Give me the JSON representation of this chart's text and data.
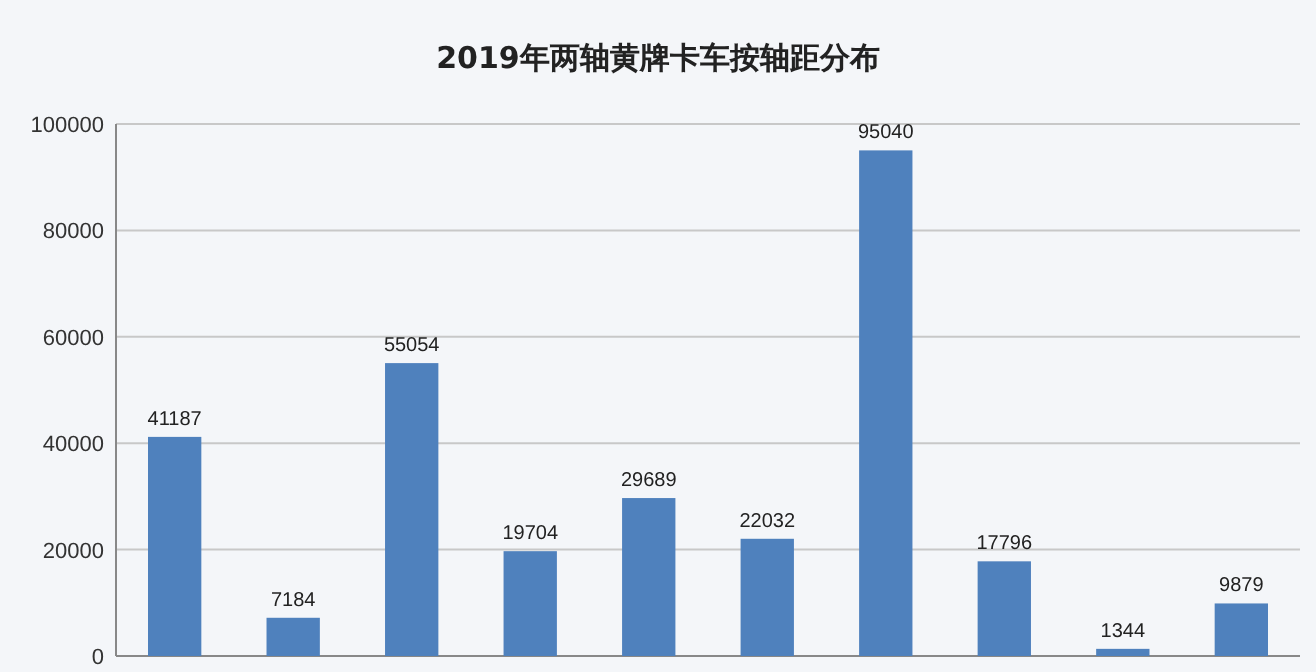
{
  "chart_data": {
    "type": "bar",
    "title": "2019年两轴黄牌卡车按轴距分布",
    "categories": [
      null,
      null,
      null,
      null,
      null,
      null,
      null,
      null,
      null,
      null
    ],
    "values": [
      41187,
      7184,
      55054,
      19704,
      29689,
      22032,
      95040,
      17796,
      1344,
      9879
    ],
    "color": "#4f81bd",
    "ylim": [
      0,
      100000
    ],
    "yticks": [
      0,
      20000,
      40000,
      60000,
      80000,
      100000
    ],
    "grid": "y",
    "data_labels": true
  }
}
